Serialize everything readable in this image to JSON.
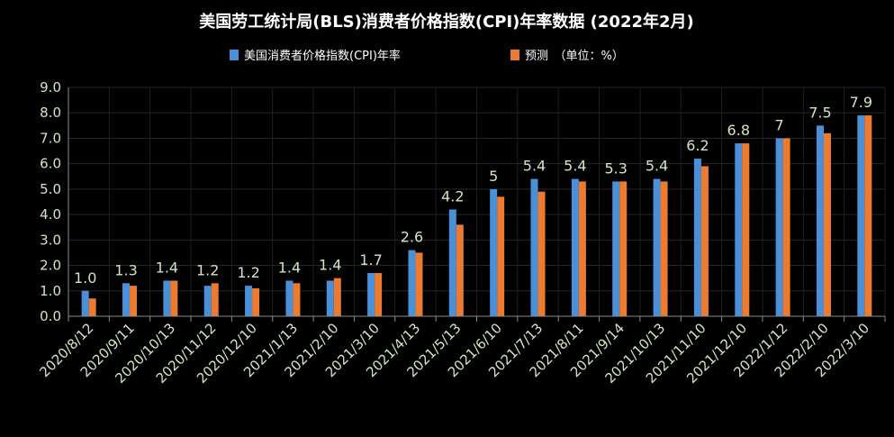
{
  "chart_data": {
    "type": "bar",
    "title": "美国劳工统计局(BLS)消费者价格指数(CPI)年率数据 (2022年2月)",
    "legend_position": "top",
    "categories": [
      "2020/8/12",
      "2020/9/11",
      "2020/10/13",
      "2020/11/12",
      "2020/12/10",
      "2021/1/13",
      "2021/2/10",
      "2021/3/10",
      "2021/4/13",
      "2021/5/13",
      "2021/6/10",
      "2021/7/13",
      "2021/8/11",
      "2021/9/14",
      "2021/10/13",
      "2021/11/10",
      "2021/12/10",
      "2022/1/12",
      "2022/2/10",
      "2022/3/10"
    ],
    "series": [
      {
        "name": "美国消费者价格指数(CPI)年率",
        "color": "#4a90d9",
        "values": [
          1.0,
          1.3,
          1.4,
          1.2,
          1.2,
          1.4,
          1.4,
          1.7,
          2.6,
          4.2,
          5.0,
          5.4,
          5.4,
          5.3,
          5.4,
          6.2,
          6.8,
          7.0,
          7.5,
          7.9
        ]
      },
      {
        "name": "预测　（单位：%）",
        "color": "#ec7b2f",
        "values": [
          0.7,
          1.2,
          1.4,
          1.3,
          1.1,
          1.3,
          1.5,
          1.7,
          2.5,
          3.6,
          4.7,
          4.9,
          5.3,
          5.3,
          5.3,
          5.9,
          6.8,
          7.0,
          7.2,
          7.9
        ]
      }
    ],
    "data_labels": [
      "1.0",
      "1.3",
      "1.4",
      "1.2",
      "1.2",
      "1.4",
      "1.4",
      "1.7",
      "2.6",
      "4.2",
      "5",
      "5.4",
      "5.4",
      "5.3",
      "5.4",
      "6.2",
      "6.8",
      "7",
      "7.5",
      "7.9"
    ],
    "y_ticks": [
      "0.0",
      "1.0",
      "2.0",
      "3.0",
      "4.0",
      "5.0",
      "6.0",
      "7.0",
      "8.0",
      "9.0"
    ],
    "ylim": [
      0,
      9
    ],
    "xlabel": "",
    "ylabel": "",
    "grid": true
  }
}
